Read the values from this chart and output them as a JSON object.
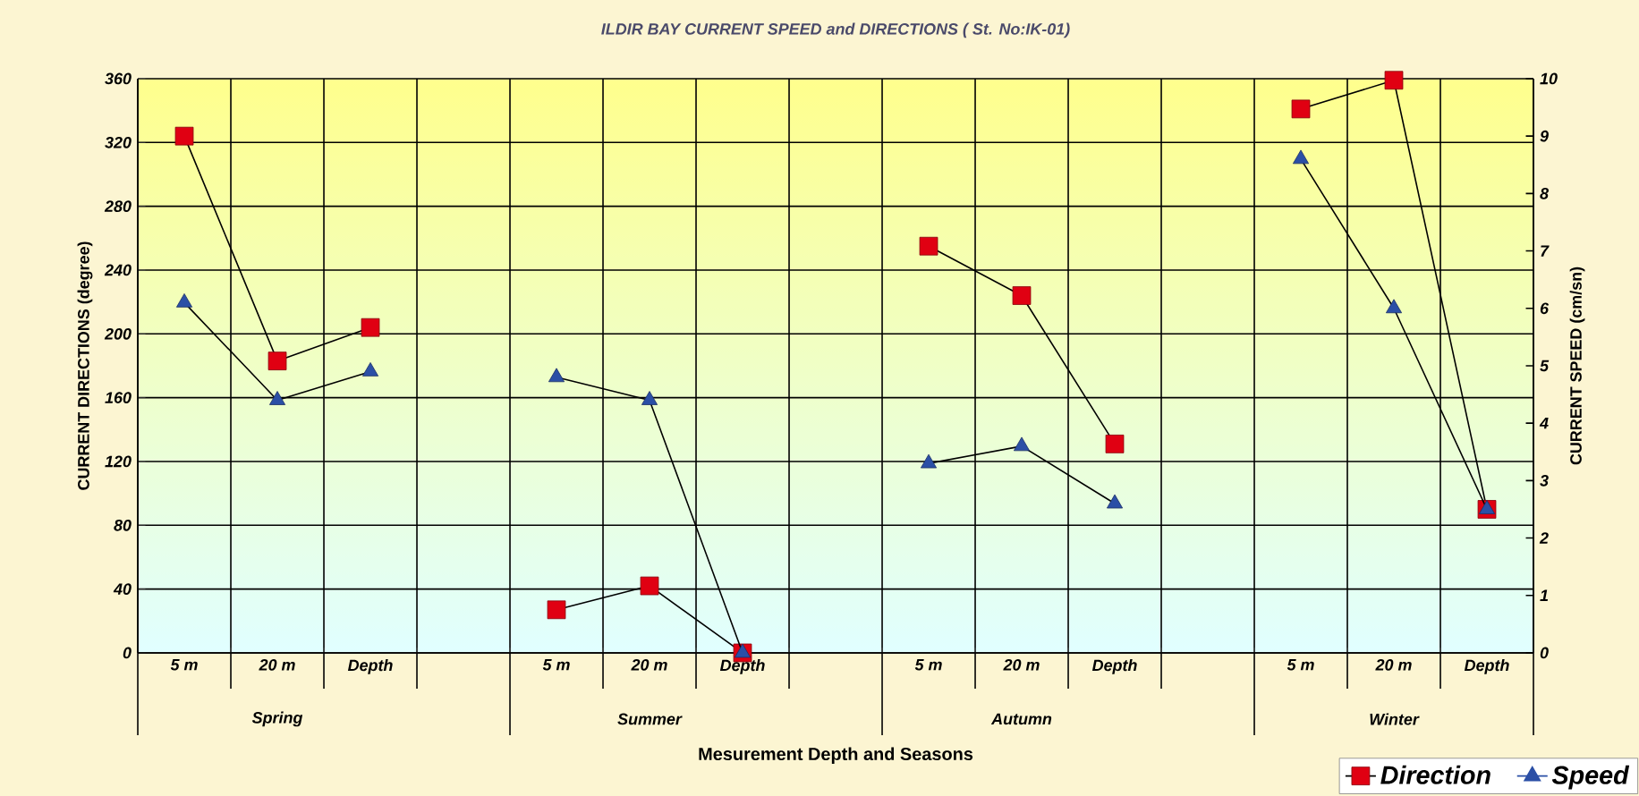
{
  "chart_data": {
    "type": "line",
    "title": "ILDIR BAY CURRENT SPEED and DIRECTIONS ( St. No:IK-01)",
    "xlabel": "Mesurement Depth and Seasons",
    "ylabel": "CURRENT DIRECTIONS (degree)",
    "y2label": "CURRENT SPEED (cm/sn)",
    "categories": [
      "5 m",
      "20 m",
      "Depth",
      null,
      "5 m",
      "20 m",
      "Depth",
      null,
      "5 m",
      "20 m",
      "Depth",
      null,
      "5 m",
      "20 m",
      "Depth"
    ],
    "annotations": [
      "Spring",
      "Summer",
      "Autumn",
      "Winter"
    ],
    "series": [
      {
        "name": "Direction",
        "color": "#e00012",
        "marker": "square",
        "values": [
          324,
          183,
          204,
          null,
          27,
          42,
          0,
          null,
          255,
          224,
          131,
          null,
          341,
          359,
          90
        ]
      },
      {
        "name": "Speed",
        "color": "#2b4fa6",
        "marker": "triangle",
        "axis": "y2",
        "values": [
          6.1,
          4.4,
          4.9,
          null,
          4.8,
          4.4,
          0,
          null,
          3.3,
          3.6,
          2.6,
          null,
          8.6,
          6.0,
          2.5
        ]
      }
    ],
    "ylim": [
      0,
      360
    ],
    "yticks": [
      0,
      40,
      80,
      120,
      160,
      200,
      240,
      280,
      320,
      360
    ],
    "y2lim": [
      0,
      10
    ],
    "y2ticks": [
      0,
      1,
      2,
      3,
      4,
      5,
      6,
      7,
      8,
      9,
      10
    ],
    "grid": true,
    "legend": "bottom right"
  }
}
